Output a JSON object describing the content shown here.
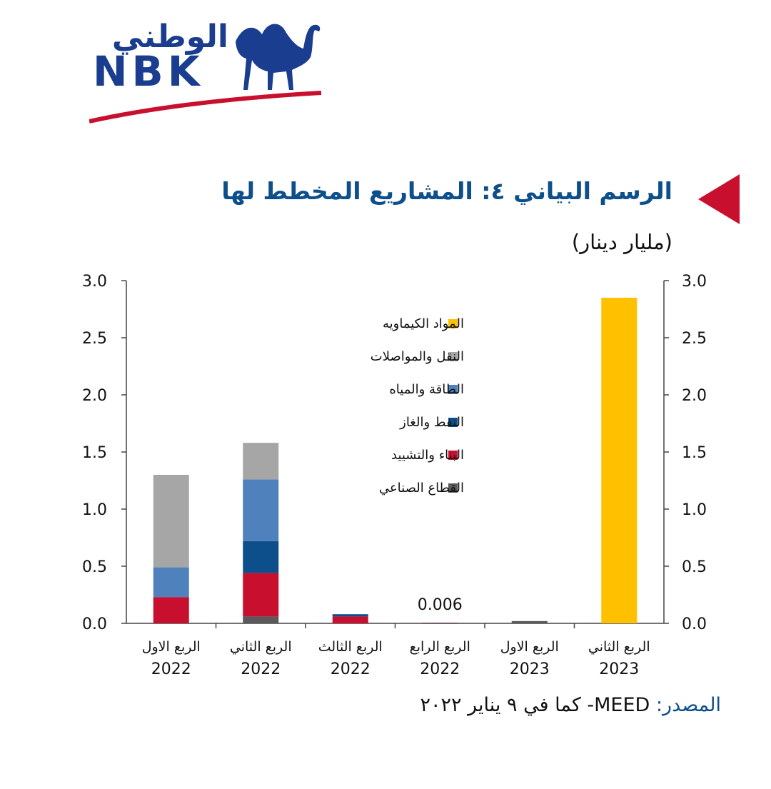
{
  "logo": {
    "arabic_text": "الوطني",
    "latin_text": "NBK",
    "icon": "camel-icon"
  },
  "header": {
    "title": "الرسم البياني ٤: المشاريع المخطط لها",
    "subtitle": "(مليار دينار)"
  },
  "footer": {
    "source_label": "المصدر:",
    "source_text": "MEED- كما في ٩ يناير ٢٠٢٢"
  },
  "colors": {
    "accent_triangle": "#c8102e",
    "title": "#0d4f8b"
  },
  "chart_data": {
    "type": "bar",
    "stacked": true,
    "categories": [
      [
        "الربع الاول",
        "2022"
      ],
      [
        "الربع الثاني",
        "2022"
      ],
      [
        "الربع  الثالث",
        "2022"
      ],
      [
        "الربع الرابع",
        "2022"
      ],
      [
        "الربع الاول",
        "2023"
      ],
      [
        "الربع الثاني",
        "2023"
      ]
    ],
    "series": [
      {
        "name": "القطاع الصناعي",
        "color": "#595959",
        "values": [
          0,
          0.06,
          0,
          0,
          0.02,
          0
        ]
      },
      {
        "name": "البناء والتشييد",
        "color": "#c8102e",
        "values": [
          0.23,
          0.38,
          0.06,
          0.003,
          0,
          0
        ]
      },
      {
        "name": "النفط والغاز",
        "color": "#0d4f8b",
        "values": [
          0,
          0.28,
          0.02,
          0.003,
          0,
          0
        ]
      },
      {
        "name": "الطاقة والمياه",
        "color": "#4f81bd",
        "values": [
          0.26,
          0.54,
          0,
          0,
          0,
          0
        ]
      },
      {
        "name": "النقل والمواصلات",
        "color": "#a6a6a6",
        "values": [
          0.81,
          0.32,
          0,
          0,
          0,
          0
        ]
      },
      {
        "name": "المواد الكيماويه",
        "color": "#ffc000",
        "values": [
          0,
          0,
          0,
          0,
          0,
          2.85
        ]
      }
    ],
    "ylim": [
      0,
      3.0
    ],
    "yticks": [
      "0.0",
      "0.5",
      "1.0",
      "1.5",
      "2.0",
      "2.5",
      "3.0"
    ],
    "dual_y_axis": true,
    "grid": false,
    "legend_position": "top-center",
    "annotations": [
      {
        "category_index": 3,
        "text": "0.006"
      }
    ]
  }
}
